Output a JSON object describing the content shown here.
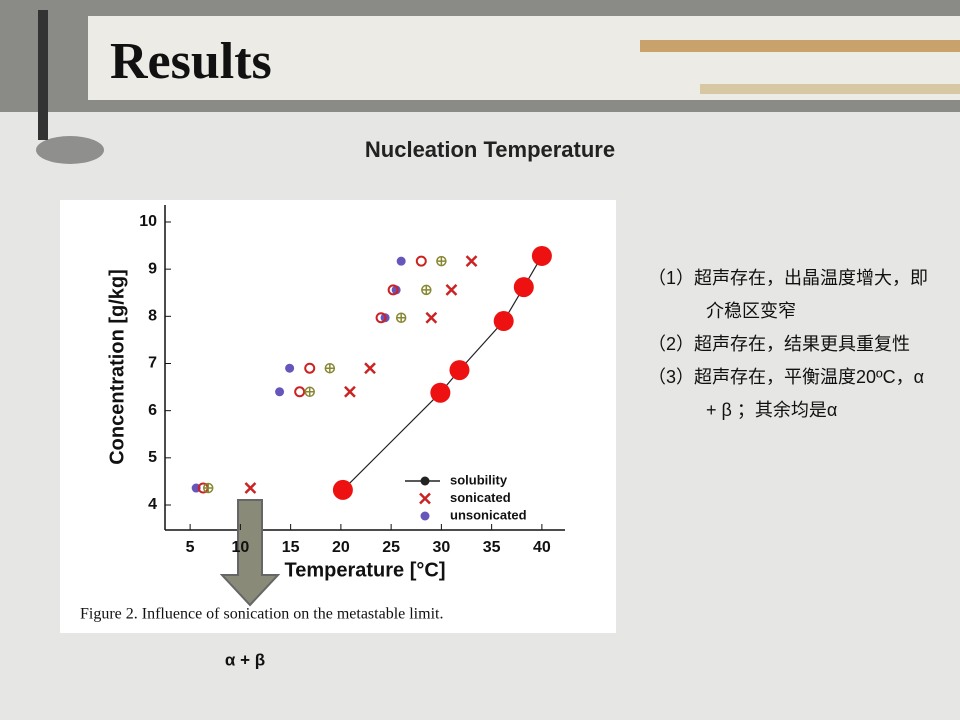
{
  "slide": {
    "title": "Results",
    "subtitle": "Nucleation Temperature",
    "notes": [
      "（1）超声存在，出晶温度增大，即介稳区变窄",
      "（2）超声存在，结果更具重复性",
      "（3）超声存在，平衡温度20ºC，α + β ；其余均是α"
    ],
    "arrow_label": "α + β"
  },
  "chart_data": {
    "type": "scatter",
    "caption": "Figure 2.  Influence of sonication on the metastable limit.",
    "x_label": "Temperature [°C]",
    "y_label": "Concentration [g/kg]",
    "xlim": [
      2.5,
      42.3
    ],
    "ylim": [
      3.47,
      10.36
    ],
    "xticks": [
      5,
      10,
      15,
      20,
      25,
      30,
      35,
      40
    ],
    "yticks": [
      4,
      5,
      6,
      7,
      8,
      9,
      10
    ],
    "legend": "lower right",
    "series": [
      {
        "name": "solubility",
        "color": "#ee1111",
        "marker": "bigdot",
        "line": true,
        "x": [
          20.2,
          29.9,
          31.8,
          36.2,
          38.2,
          40.0
        ],
        "values": [
          4.32,
          6.38,
          6.86,
          7.9,
          8.62,
          9.28
        ]
      },
      {
        "name": "sonicated",
        "color": "#cc2222",
        "marker": "cross",
        "x": [
          11.0,
          20.9,
          22.9,
          29.0,
          31.0,
          33.0
        ],
        "values": [
          4.36,
          6.4,
          6.9,
          7.97,
          8.56,
          9.17
        ]
      },
      {
        "name": "unsonicated",
        "color": "#6655bb",
        "marker": "dot",
        "x": [
          5.6,
          13.9,
          14.9,
          24.4,
          25.5,
          26.0
        ],
        "values": [
          4.36,
          6.4,
          6.9,
          7.97,
          8.56,
          9.17
        ]
      },
      {
        "color": "#cc2222",
        "marker": "circle",
        "x": [
          6.3,
          15.9,
          16.9,
          24.0,
          25.2,
          28.0
        ],
        "values": [
          4.36,
          6.4,
          6.9,
          7.97,
          8.56,
          9.17
        ]
      },
      {
        "color": "#888833",
        "marker": "pluscircle",
        "x": [
          6.8,
          16.9,
          18.9,
          26.0,
          28.5,
          30.0
        ],
        "values": [
          4.36,
          6.4,
          6.9,
          7.97,
          8.56,
          9.17
        ]
      }
    ]
  }
}
